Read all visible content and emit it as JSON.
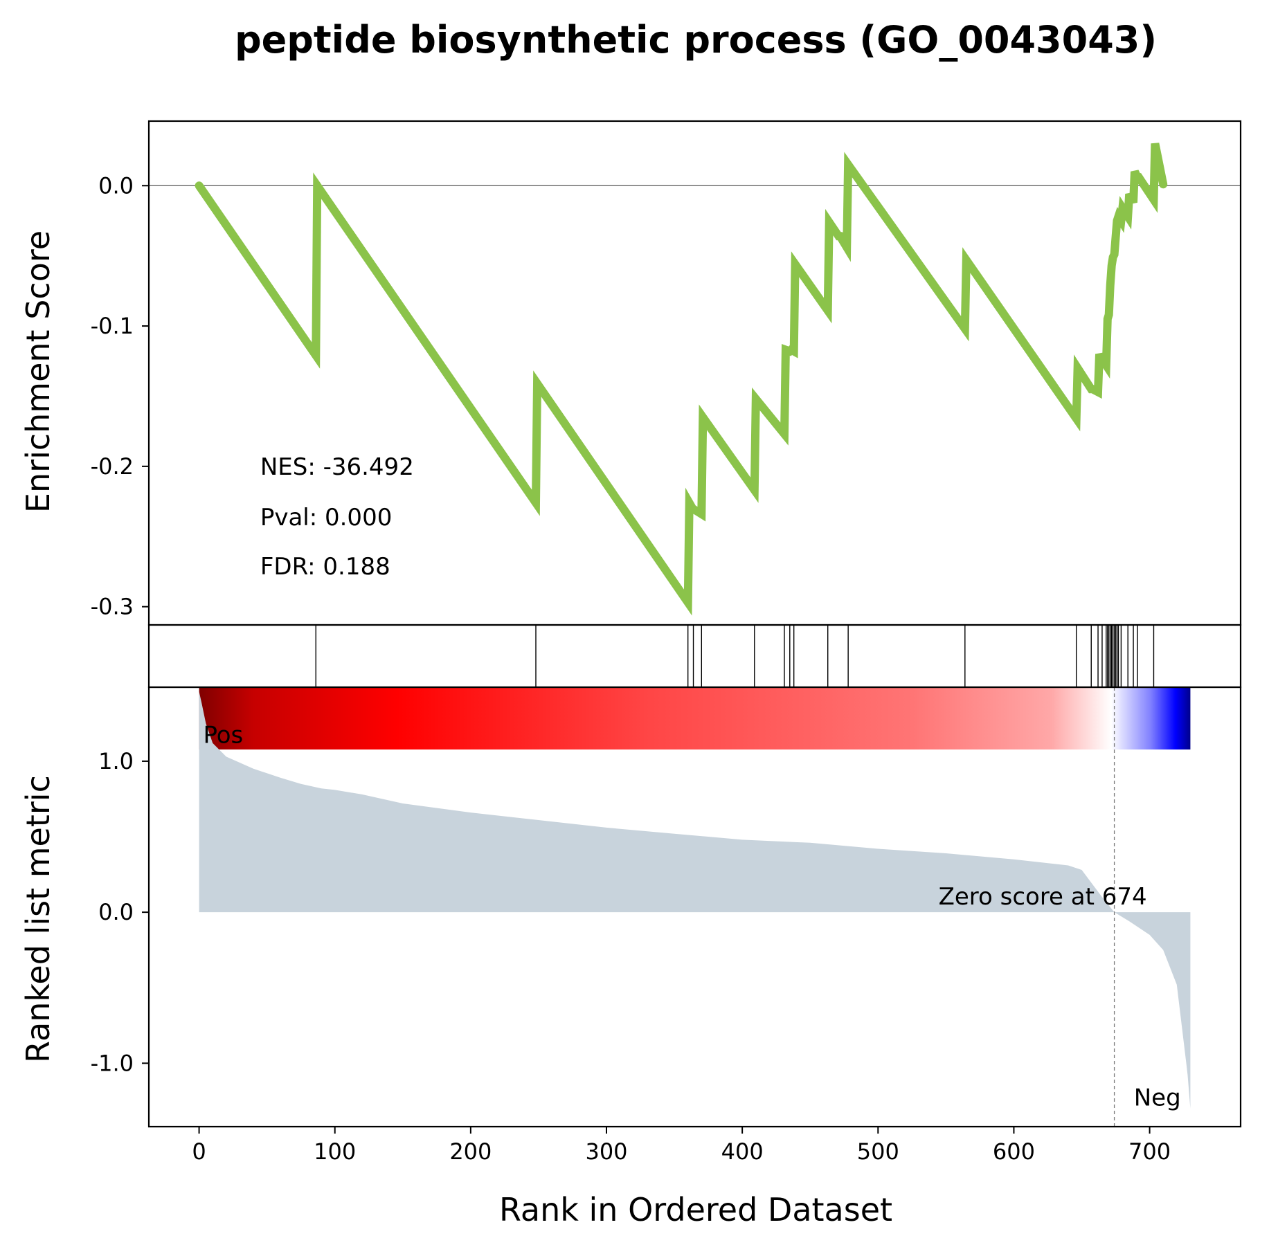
{
  "chart_data": {
    "type": "line",
    "title": "peptide biosynthetic process (GO_0043043)",
    "xlabel": "Rank in Ordered Dataset",
    "xlim": [
      -37,
      767
    ],
    "x_ticks": [
      {
        "value": 0,
        "label": "0"
      },
      {
        "value": 100,
        "label": "100"
      },
      {
        "value": 200,
        "label": "200"
      },
      {
        "value": 300,
        "label": "300"
      },
      {
        "value": 400,
        "label": "400"
      },
      {
        "value": 500,
        "label": "500"
      },
      {
        "value": 600,
        "label": "600"
      },
      {
        "value": 700,
        "label": "700"
      }
    ],
    "enrichment": {
      "ylabel": "Enrichment Score",
      "ylim": [
        -0.313,
        0.046
      ],
      "y_ticks": [
        {
          "value": 0.0,
          "label": "0.0"
        },
        {
          "value": -0.1,
          "label": "-0.1"
        },
        {
          "value": -0.2,
          "label": "-0.2"
        },
        {
          "value": -0.3,
          "label": "-0.3"
        }
      ],
      "line_color": "#8bc34a",
      "zero_line": true,
      "x": [
        0,
        86,
        87,
        248,
        249,
        360,
        361,
        364,
        365,
        370,
        371,
        409,
        410,
        431,
        432,
        435,
        436,
        438,
        439,
        463,
        464,
        471,
        472,
        477,
        478,
        564,
        565,
        646,
        647,
        657,
        658,
        662,
        663,
        665,
        666,
        668,
        669,
        670,
        671,
        672,
        673,
        674,
        675,
        676,
        677,
        679,
        680,
        684,
        685,
        688,
        689,
        691,
        692,
        703,
        704,
        710
      ],
      "y": [
        0.0,
        -0.121,
        0.0,
        -0.226,
        -0.141,
        -0.297,
        -0.226,
        -0.231,
        -0.231,
        -0.234,
        -0.165,
        -0.217,
        -0.152,
        -0.177,
        -0.117,
        -0.118,
        -0.117,
        -0.118,
        -0.056,
        -0.089,
        -0.026,
        -0.036,
        -0.036,
        -0.044,
        0.015,
        -0.102,
        -0.053,
        -0.166,
        -0.13,
        -0.145,
        -0.145,
        -0.147,
        -0.12,
        -0.125,
        -0.125,
        -0.128,
        -0.095,
        -0.092,
        -0.071,
        -0.057,
        -0.051,
        -0.049,
        -0.037,
        -0.025,
        -0.022,
        -0.025,
        -0.016,
        -0.022,
        -0.006,
        -0.012,
        0.01,
        0.006,
        0.006,
        -0.01,
        0.03,
        0.001
      ],
      "annotations": [
        {
          "text": "NES: -36.492",
          "x": 45,
          "y": -0.2
        },
        {
          "text": "Pval: 0.000",
          "x": 45,
          "y": -0.236
        },
        {
          "text": "FDR: 0.188",
          "x": 45,
          "y": -0.271
        }
      ]
    },
    "hits": {
      "positions": [
        86,
        248,
        360,
        364,
        370,
        409,
        431,
        435,
        438,
        463,
        478,
        564,
        646,
        657,
        662,
        665,
        668,
        669,
        670,
        671,
        672,
        673,
        674,
        675,
        676,
        677,
        679,
        684,
        688,
        691,
        703
      ]
    },
    "heatmap": {
      "stops": [
        {
          "offset": 0.0,
          "color": "#800000"
        },
        {
          "offset": 0.055,
          "color": "#c60000"
        },
        {
          "offset": 0.2,
          "color": "#ff0000"
        },
        {
          "offset": 0.45,
          "color": "#ff4545"
        },
        {
          "offset": 0.72,
          "color": "#ff7575"
        },
        {
          "offset": 0.86,
          "color": "#ffa8a8"
        },
        {
          "offset": 0.92,
          "color": "#ffffff"
        },
        {
          "offset": 0.96,
          "color": "#8080ff"
        },
        {
          "offset": 0.985,
          "color": "#0000ff"
        },
        {
          "offset": 1.0,
          "color": "#00008b"
        }
      ]
    },
    "ranked_metric": {
      "ylabel": "Ranked list metric",
      "ylim": [
        -1.42,
        1.49
      ],
      "y_ticks": [
        {
          "value": 1.0,
          "label": "1.0"
        },
        {
          "value": 0.0,
          "label": "0.0"
        },
        {
          "value": -1.0,
          "label": "-1.0"
        }
      ],
      "fill_color": "#c8d3dc",
      "x": [
        0,
        2,
        5,
        10,
        20,
        40,
        60,
        75,
        90,
        100,
        120,
        150,
        200,
        250,
        300,
        350,
        400,
        450,
        500,
        550,
        600,
        640,
        650,
        655,
        665,
        674,
        685,
        700,
        710,
        720,
        724,
        727,
        728,
        730
      ],
      "y": [
        1.46,
        1.38,
        1.25,
        1.12,
        1.03,
        0.95,
        0.89,
        0.85,
        0.82,
        0.81,
        0.78,
        0.72,
        0.66,
        0.61,
        0.56,
        0.52,
        0.48,
        0.46,
        0.42,
        0.39,
        0.35,
        0.31,
        0.28,
        0.22,
        0.1,
        0.0,
        -0.06,
        -0.15,
        -0.25,
        -0.48,
        -0.78,
        -1.0,
        -1.08,
        -1.3
      ],
      "pos_label": {
        "text": "Pos",
        "color": "#ff0000"
      },
      "neg_label": {
        "text": "Neg",
        "color": "#0000ff"
      },
      "zero_score": {
        "x": 674,
        "text": "Zero score at 674"
      }
    }
  }
}
